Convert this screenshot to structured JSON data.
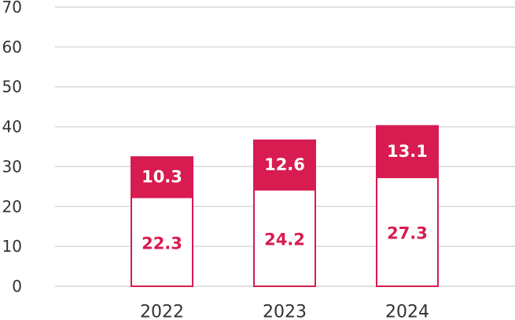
{
  "chart_data": {
    "type": "bar",
    "stacked": true,
    "categories": [
      "2022",
      "2023",
      "2024"
    ],
    "series": [
      {
        "values": [
          22.3,
          24.2,
          27.3
        ],
        "fill": "#ffffff",
        "stroke": "#d81b50"
      },
      {
        "values": [
          10.3,
          12.6,
          13.1
        ],
        "fill": "#d81b50",
        "stroke": "#d81b50"
      }
    ],
    "ylim": [
      0,
      70
    ],
    "yticks": [
      0,
      10,
      20,
      30,
      40,
      50,
      60,
      70
    ],
    "grid": true,
    "title": "",
    "xlabel": "",
    "ylabel": "",
    "colors": {
      "accent": "#d81b50",
      "grid": "#d9d9d9",
      "text": "#333333"
    }
  }
}
